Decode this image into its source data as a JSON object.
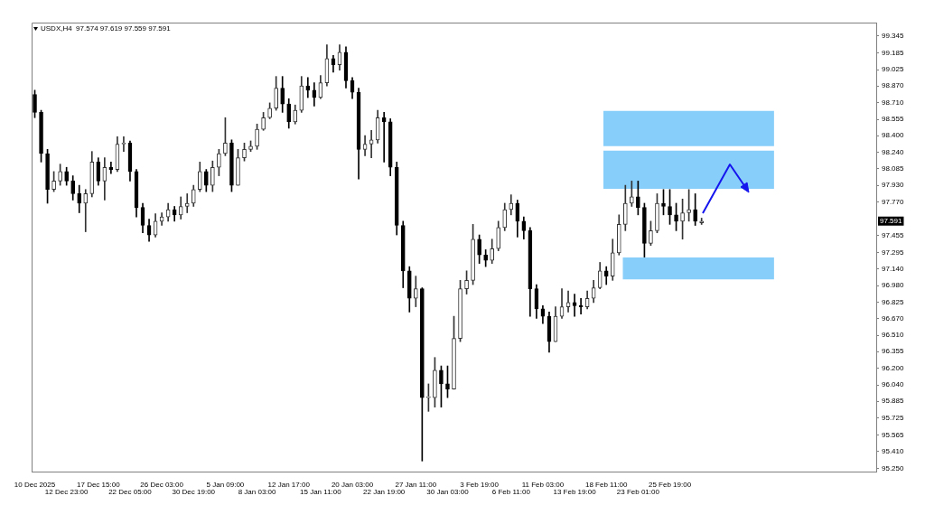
{
  "chart_data": {
    "type": "candlestick",
    "title": "USDX,H4  97.574 97.619 97.559 97.591",
    "categories": [
      "10 Dec 2025",
      null,
      null,
      null,
      null,
      "12 Dec 23:00",
      null,
      null,
      null,
      null,
      "17 Dec 15:00",
      null,
      null,
      null,
      null,
      "22 Dec 05:00",
      null,
      null,
      null,
      null,
      "26 Dec 03:00",
      null,
      null,
      null,
      null,
      "30 Dec 19:00",
      null,
      null,
      null,
      null,
      "5 Jan 09:00",
      null,
      null,
      null,
      null,
      "8 Jan 03:00",
      null,
      null,
      null,
      null,
      "12 Jan 17:00",
      null,
      null,
      null,
      null,
      "15 Jan 11:00",
      null,
      null,
      null,
      null,
      "20 Jan 03:00",
      null,
      null,
      null,
      null,
      "22 Jan 19:00",
      null,
      null,
      null,
      null,
      "27 Jan 11:00",
      null,
      null,
      null,
      null,
      "30 Jan 03:00",
      null,
      null,
      null,
      null,
      "3 Feb 19:00",
      null,
      null,
      null,
      null,
      "6 Feb 11:00",
      null,
      null,
      null,
      null,
      "11 Feb 03:00",
      null,
      null,
      null,
      null,
      "13 Feb 19:00",
      null,
      null,
      null,
      null,
      "18 Feb 11:00",
      null,
      null,
      null,
      null,
      "23 Feb 01:00",
      null,
      null,
      null,
      null,
      "25 Feb 19:00",
      null,
      null,
      null,
      null,
      null,
      null,
      null,
      null,
      null,
      null,
      null,
      null,
      null,
      null,
      null,
      null,
      null,
      null,
      null,
      null,
      null,
      null,
      null,
      null,
      null,
      null,
      null,
      null,
      null,
      null,
      null,
      null
    ],
    "ohlc": [
      [
        98.79,
        98.83,
        98.57,
        98.62
      ],
      [
        98.62,
        98.64,
        98.15,
        98.23
      ],
      [
        98.23,
        98.27,
        97.76,
        97.89
      ],
      [
        97.89,
        98.06,
        97.87,
        97.97
      ],
      [
        97.97,
        98.13,
        97.93,
        98.06
      ],
      [
        98.06,
        98.1,
        97.93,
        97.97
      ],
      [
        97.97,
        98.02,
        97.79,
        97.85
      ],
      [
        97.85,
        97.93,
        97.67,
        97.76
      ],
      [
        97.76,
        97.89,
        97.49,
        97.85
      ],
      [
        97.85,
        98.25,
        97.82,
        98.15
      ],
      [
        98.15,
        98.19,
        97.93,
        97.97
      ],
      [
        97.97,
        98.19,
        97.79,
        98.1
      ],
      [
        98.1,
        98.15,
        98.04,
        98.08
      ],
      [
        98.08,
        98.39,
        98.06,
        98.32
      ],
      [
        98.32,
        98.39,
        98.25,
        98.33
      ],
      [
        98.33,
        98.35,
        97.97,
        98.06
      ],
      [
        98.06,
        98.08,
        97.63,
        97.72
      ],
      [
        97.72,
        97.76,
        97.48,
        97.55
      ],
      [
        97.55,
        97.61,
        97.4,
        97.46
      ],
      [
        97.46,
        97.66,
        97.44,
        97.59
      ],
      [
        97.59,
        97.67,
        97.55,
        97.63
      ],
      [
        97.63,
        97.76,
        97.59,
        97.7
      ],
      [
        97.7,
        97.73,
        97.59,
        97.65
      ],
      [
        97.65,
        97.82,
        97.61,
        97.73
      ],
      [
        97.73,
        97.85,
        97.67,
        97.76
      ],
      [
        97.76,
        97.93,
        97.73,
        97.89
      ],
      [
        97.89,
        98.15,
        97.87,
        98.06
      ],
      [
        98.06,
        98.08,
        97.87,
        97.93
      ],
      [
        97.93,
        98.16,
        97.87,
        98.1
      ],
      [
        98.1,
        98.27,
        98.02,
        98.23
      ],
      [
        98.23,
        98.57,
        98.21,
        98.33
      ],
      [
        98.33,
        98.36,
        97.87,
        97.93
      ],
      [
        97.93,
        98.27,
        97.93,
        98.19
      ],
      [
        98.19,
        98.33,
        98.16,
        98.27
      ],
      [
        98.27,
        98.35,
        98.25,
        98.3
      ],
      [
        98.3,
        98.51,
        98.27,
        98.46
      ],
      [
        98.46,
        98.62,
        98.45,
        98.57
      ],
      [
        98.57,
        98.71,
        98.56,
        98.66
      ],
      [
        98.66,
        98.96,
        98.64,
        98.85
      ],
      [
        98.85,
        98.96,
        98.62,
        98.7
      ],
      [
        98.7,
        98.75,
        98.47,
        98.53
      ],
      [
        98.53,
        98.69,
        98.51,
        98.64
      ],
      [
        98.64,
        98.96,
        98.62,
        98.87
      ],
      [
        98.87,
        98.95,
        98.76,
        98.83
      ],
      [
        98.83,
        98.9,
        98.68,
        98.76
      ],
      [
        98.76,
        98.97,
        98.75,
        98.9
      ],
      [
        98.9,
        99.26,
        98.87,
        99.13
      ],
      [
        99.13,
        99.16,
        99.0,
        99.07
      ],
      [
        99.07,
        99.26,
        99.02,
        99.19
      ],
      [
        99.19,
        99.24,
        98.85,
        98.92
      ],
      [
        98.92,
        98.95,
        98.75,
        98.81
      ],
      [
        98.81,
        98.85,
        97.99,
        98.27
      ],
      [
        98.27,
        98.4,
        98.21,
        98.32
      ],
      [
        98.32,
        98.45,
        98.19,
        98.36
      ],
      [
        98.36,
        98.64,
        98.33,
        98.57
      ],
      [
        98.57,
        98.62,
        98.15,
        98.53
      ],
      [
        98.53,
        98.56,
        98.02,
        98.1
      ],
      [
        98.1,
        98.15,
        97.46,
        97.55
      ],
      [
        97.55,
        97.59,
        96.96,
        97.12
      ],
      [
        97.12,
        97.16,
        96.73,
        96.86
      ],
      [
        96.86,
        97.07,
        96.78,
        96.95
      ],
      [
        96.95,
        96.96,
        95.32,
        95.92
      ],
      [
        95.92,
        96.05,
        95.79,
        95.92
      ],
      [
        95.92,
        96.3,
        95.83,
        96.18
      ],
      [
        96.18,
        96.22,
        95.83,
        96.05
      ],
      [
        96.05,
        96.22,
        95.92,
        96.0
      ],
      [
        96.0,
        96.69,
        96.0,
        96.48
      ],
      [
        96.48,
        97.03,
        96.45,
        96.95
      ],
      [
        96.95,
        97.12,
        96.9,
        97.03
      ],
      [
        97.03,
        97.56,
        96.99,
        97.42
      ],
      [
        97.42,
        97.46,
        97.19,
        97.27
      ],
      [
        97.27,
        97.32,
        97.16,
        97.22
      ],
      [
        97.22,
        97.42,
        97.19,
        97.33
      ],
      [
        97.33,
        97.59,
        97.31,
        97.53
      ],
      [
        97.53,
        97.76,
        97.5,
        97.7
      ],
      [
        97.7,
        97.84,
        97.65,
        97.76
      ],
      [
        97.76,
        97.79,
        97.44,
        97.59
      ],
      [
        97.59,
        97.63,
        97.42,
        97.5
      ],
      [
        97.5,
        97.53,
        96.69,
        96.95
      ],
      [
        96.95,
        96.99,
        96.67,
        96.76
      ],
      [
        96.76,
        96.79,
        96.62,
        96.69
      ],
      [
        96.69,
        96.73,
        96.35,
        96.45
      ],
      [
        96.45,
        96.78,
        96.45,
        96.69
      ],
      [
        96.69,
        96.95,
        96.67,
        96.78
      ],
      [
        96.78,
        96.93,
        96.73,
        96.82
      ],
      [
        96.82,
        96.9,
        96.69,
        96.79
      ],
      [
        96.79,
        96.86,
        96.71,
        96.78
      ],
      [
        96.78,
        96.93,
        96.76,
        96.86
      ],
      [
        96.86,
        97.03,
        96.82,
        96.96
      ],
      [
        96.96,
        97.2,
        96.95,
        97.12
      ],
      [
        97.12,
        97.16,
        96.99,
        97.07
      ],
      [
        97.07,
        97.42,
        97.03,
        97.29
      ],
      [
        97.29,
        97.65,
        97.27,
        97.56
      ],
      [
        97.56,
        97.93,
        97.5,
        97.76
      ],
      [
        97.76,
        97.97,
        97.73,
        97.82
      ],
      [
        97.82,
        97.97,
        97.65,
        97.72
      ],
      [
        97.72,
        97.76,
        97.25,
        97.38
      ],
      [
        97.38,
        97.59,
        97.36,
        97.5
      ],
      [
        97.5,
        97.85,
        97.48,
        97.76
      ],
      [
        97.76,
        97.89,
        97.65,
        97.73
      ],
      [
        97.73,
        97.89,
        97.56,
        97.65
      ],
      [
        97.65,
        97.76,
        97.5,
        97.59
      ],
      [
        97.59,
        97.8,
        97.42,
        97.67
      ],
      [
        97.67,
        97.89,
        97.59,
        97.7
      ],
      [
        97.7,
        97.85,
        97.55,
        97.59
      ],
      [
        97.574,
        97.619,
        97.559,
        97.591
      ],
      null,
      null,
      null,
      null,
      null,
      null,
      null,
      null,
      null,
      null,
      null,
      null,
      null,
      null,
      null,
      null,
      null,
      null,
      null,
      null,
      null,
      null,
      null,
      null,
      null,
      null,
      null
    ],
    "ylim": [
      95.22,
      99.47
    ],
    "yticks": [
      99.345,
      99.185,
      99.025,
      {
        "value": 98.87,
        "label": "98.870"
      },
      {
        "value": 98.71,
        "label": "98.710"
      },
      98.555,
      {
        "value": 98.4,
        "label": "98.400"
      },
      {
        "value": 98.24,
        "label": "98.240"
      },
      98.085,
      {
        "value": 97.93,
        "label": "97.930"
      },
      {
        "value": 97.77,
        "label": "97.770"
      },
      97.455,
      97.295,
      {
        "value": 97.14,
        "label": "97.140"
      },
      {
        "value": 96.98,
        "label": "96.980"
      },
      96.825,
      {
        "value": 96.67,
        "label": "96.670"
      },
      {
        "value": 96.51,
        "label": "96.510"
      },
      96.355,
      {
        "value": 96.2,
        "label": "96.200"
      },
      {
        "value": 96.04,
        "label": "96.040"
      },
      95.885,
      95.725,
      95.565,
      {
        "value": 95.41,
        "label": "95.410"
      },
      {
        "value": 95.25,
        "label": "95.250"
      }
    ],
    "bands": [
      {
        "axis": "y",
        "from": 98.3,
        "to": 98.634,
        "color": "#87cefa"
      },
      {
        "axis": "y",
        "from": 97.897,
        "to": 98.257,
        "color": "#87cefa"
      },
      {
        "axis": "y",
        "from": 97.04,
        "to": 97.246,
        "color": "#87cefa"
      }
    ],
    "annotations": [
      {
        "text": "97.591",
        "y": 97.591
      }
    ],
    "grid": false,
    "legend": false
  }
}
